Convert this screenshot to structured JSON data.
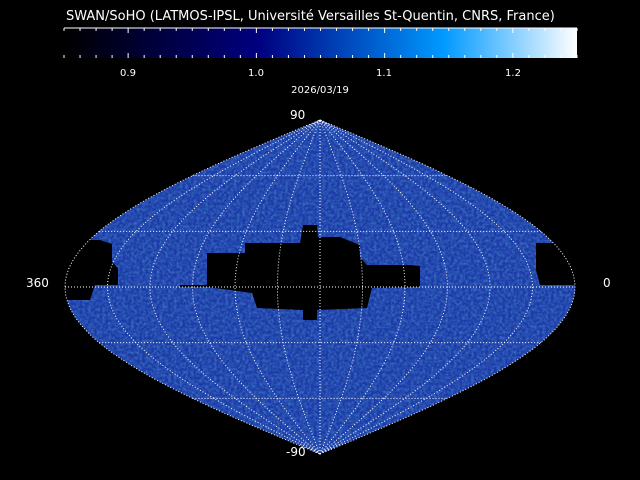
{
  "title": "SWAN/SoHO (LATMOS-IPSL, Université Versailles St-Quentin, CNRS, France)",
  "colorbar": {
    "min": 0.85,
    "max": 1.25,
    "ticks": [
      "0.9",
      "1.0",
      "1.1",
      "1.2"
    ],
    "colors": [
      "#000000",
      "#000080",
      "#0099ff",
      "#ffffff"
    ]
  },
  "date": "2026/03/19",
  "map": {
    "projection": "sinusoidal",
    "lat_top_label": "90",
    "lat_bottom_label": "-90",
    "lon_left_label": "360",
    "lon_right_label": "0",
    "fill_color": "#1c3aa8",
    "grid_color": "#ffffff"
  }
}
